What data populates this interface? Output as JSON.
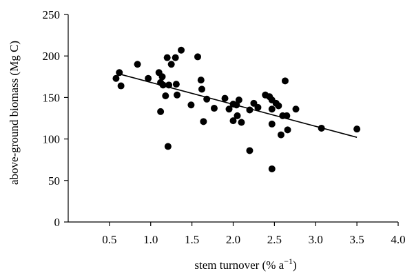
{
  "chart_data": {
    "type": "scatter",
    "xlabel": "stem turnover (% a",
    "xlabel_sup": "−1",
    "xlabel_end": ")",
    "ylabel": "above-ground biomass (Mg C)",
    "xlim": [
      0,
      4.0
    ],
    "ylim": [
      0,
      250
    ],
    "x_ticks": [
      0.5,
      1.0,
      1.5,
      2.0,
      2.5,
      3.0,
      3.5,
      4.0
    ],
    "x_tick_labels": [
      "0.5",
      "1.0",
      "1.5",
      "2.0",
      "2.5",
      "3.0",
      "3.5",
      "4.0"
    ],
    "y_ticks": [
      0,
      50,
      100,
      150,
      200,
      250
    ],
    "y_tick_labels": [
      "0",
      "50",
      "100",
      "150",
      "200",
      "250"
    ],
    "grid": false,
    "point_color": "#000000",
    "trendline": {
      "x": [
        0.63,
        3.5
      ],
      "y": [
        178,
        102
      ]
    },
    "points": [
      {
        "x": 0.58,
        "y": 173
      },
      {
        "x": 0.62,
        "y": 180
      },
      {
        "x": 0.64,
        "y": 164
      },
      {
        "x": 0.84,
        "y": 190
      },
      {
        "x": 0.97,
        "y": 173
      },
      {
        "x": 1.1,
        "y": 180
      },
      {
        "x": 1.12,
        "y": 168
      },
      {
        "x": 1.14,
        "y": 175
      },
      {
        "x": 1.15,
        "y": 165
      },
      {
        "x": 1.12,
        "y": 133
      },
      {
        "x": 1.18,
        "y": 152
      },
      {
        "x": 1.2,
        "y": 198
      },
      {
        "x": 1.22,
        "y": 165
      },
      {
        "x": 1.25,
        "y": 190
      },
      {
        "x": 1.3,
        "y": 198
      },
      {
        "x": 1.31,
        "y": 166
      },
      {
        "x": 1.32,
        "y": 153
      },
      {
        "x": 1.37,
        "y": 207
      },
      {
        "x": 1.21,
        "y": 91
      },
      {
        "x": 1.49,
        "y": 141
      },
      {
        "x": 1.57,
        "y": 199
      },
      {
        "x": 1.61,
        "y": 171
      },
      {
        "x": 1.62,
        "y": 160
      },
      {
        "x": 1.64,
        "y": 121
      },
      {
        "x": 1.68,
        "y": 148
      },
      {
        "x": 1.77,
        "y": 137
      },
      {
        "x": 1.9,
        "y": 149
      },
      {
        "x": 1.95,
        "y": 136
      },
      {
        "x": 2.0,
        "y": 142
      },
      {
        "x": 2.0,
        "y": 122
      },
      {
        "x": 2.05,
        "y": 128
      },
      {
        "x": 2.07,
        "y": 147
      },
      {
        "x": 2.1,
        "y": 120
      },
      {
        "x": 2.04,
        "y": 141
      },
      {
        "x": 2.2,
        "y": 135
      },
      {
        "x": 2.2,
        "y": 86
      },
      {
        "x": 2.25,
        "y": 143
      },
      {
        "x": 2.3,
        "y": 138
      },
      {
        "x": 2.39,
        "y": 153
      },
      {
        "x": 2.44,
        "y": 151
      },
      {
        "x": 2.47,
        "y": 147
      },
      {
        "x": 2.47,
        "y": 136
      },
      {
        "x": 2.47,
        "y": 118
      },
      {
        "x": 2.47,
        "y": 64
      },
      {
        "x": 2.52,
        "y": 143
      },
      {
        "x": 2.55,
        "y": 140
      },
      {
        "x": 2.58,
        "y": 105
      },
      {
        "x": 2.6,
        "y": 128
      },
      {
        "x": 2.63,
        "y": 170
      },
      {
        "x": 2.65,
        "y": 128
      },
      {
        "x": 2.66,
        "y": 111
      },
      {
        "x": 2.76,
        "y": 136
      },
      {
        "x": 3.07,
        "y": 113
      },
      {
        "x": 3.5,
        "y": 112
      }
    ]
  }
}
